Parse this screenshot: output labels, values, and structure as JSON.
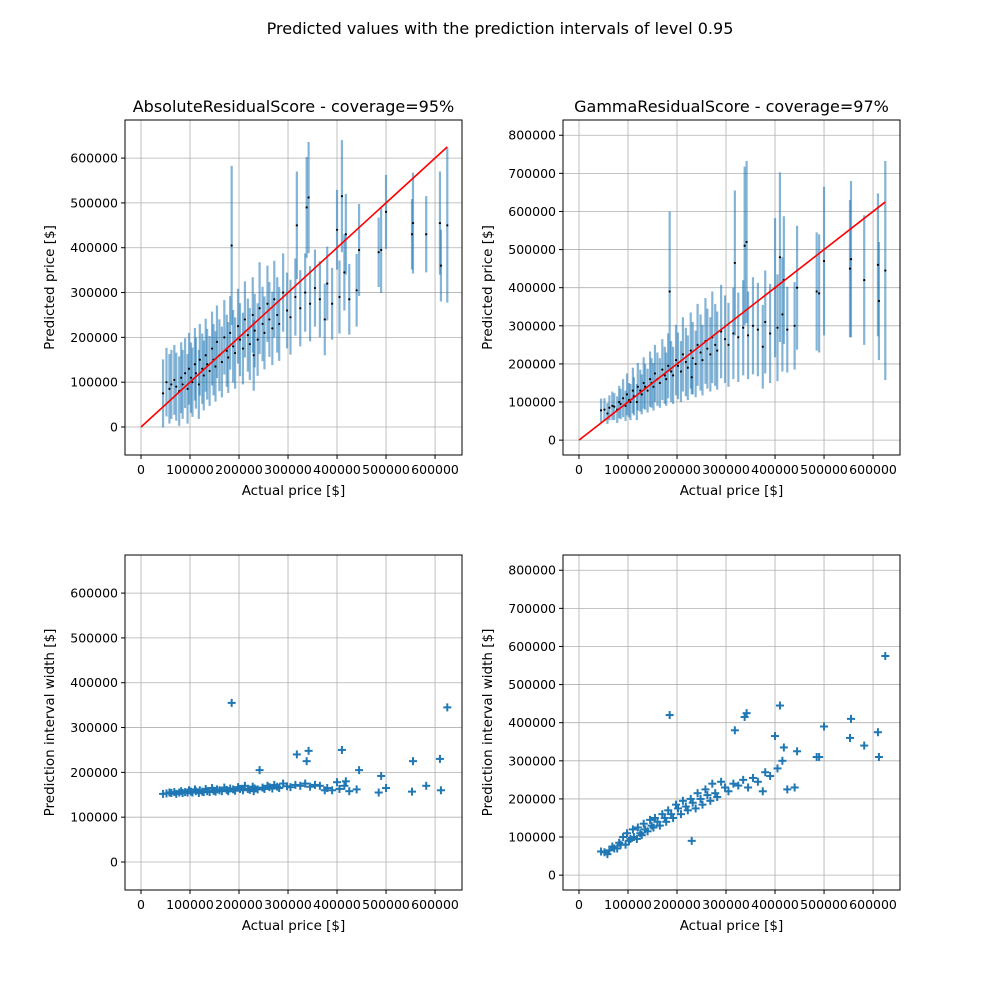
{
  "suptitle": "Predicted values with the prediction intervals of level 0.95",
  "colors": {
    "series": "#1f77b4",
    "identity_line": "#ff0000",
    "point": "#000000",
    "grid": "#b0b0b0"
  },
  "chart_data": [
    {
      "id": "abs_pred",
      "type": "errorbar",
      "title": "AbsoluteResidualScore - coverage=95%",
      "xlabel": "Actual price [$]",
      "ylabel": "Predicted price [$]",
      "method": "absolute",
      "xlim": [
        -32650,
        655000
      ],
      "ylim": [
        -62500,
        685000
      ],
      "xticks": [
        0,
        100000,
        200000,
        300000,
        400000,
        500000,
        600000
      ],
      "yticks": [
        0,
        100000,
        200000,
        300000,
        400000,
        500000,
        600000
      ],
      "grid": true,
      "identity_line": true
    },
    {
      "id": "gamma_pred",
      "type": "errorbar",
      "title": "GammaResidualScore - coverage=97%",
      "xlabel": "Actual price [$]",
      "ylabel": "Predicted price [$]",
      "method": "gamma",
      "xlim": [
        -32650,
        655000
      ],
      "ylim": [
        -39000,
        840000
      ],
      "xticks": [
        0,
        100000,
        200000,
        300000,
        400000,
        500000,
        600000
      ],
      "yticks": [
        0,
        100000,
        200000,
        300000,
        400000,
        500000,
        600000,
        700000,
        800000
      ],
      "grid": true,
      "identity_line": true
    },
    {
      "id": "abs_width",
      "type": "scatter",
      "marker": "+",
      "title": "",
      "xlabel": "Actual price [$]",
      "ylabel": "Prediction interval width [$]",
      "method": "absolute",
      "xlim": [
        -32650,
        655000
      ],
      "ylim": [
        -62500,
        685000
      ],
      "xticks": [
        0,
        100000,
        200000,
        300000,
        400000,
        500000,
        600000
      ],
      "yticks": [
        0,
        100000,
        200000,
        300000,
        400000,
        500000,
        600000
      ],
      "grid": true
    },
    {
      "id": "gamma_width",
      "type": "scatter",
      "marker": "+",
      "title": "",
      "xlabel": "Actual price [$]",
      "ylabel": "Prediction interval width [$]",
      "method": "gamma",
      "xlim": [
        -32650,
        655000
      ],
      "ylim": [
        -39000,
        840000
      ],
      "xticks": [
        0,
        100000,
        200000,
        300000,
        400000,
        500000,
        600000
      ],
      "yticks": [
        0,
        100000,
        200000,
        300000,
        400000,
        500000,
        600000,
        700000,
        800000
      ],
      "grid": true
    }
  ],
  "points_columns": [
    "actual",
    "absolute_pred",
    "absolute_width",
    "gamma_pred",
    "gamma_width"
  ],
  "points": [
    [
      45000,
      75000,
      152000,
      78000,
      62000
    ],
    [
      52000,
      100000,
      153000,
      80000,
      60000
    ],
    [
      58000,
      85000,
      155000,
      70000,
      55000
    ],
    [
      62000,
      95000,
      154000,
      85000,
      65000
    ],
    [
      68000,
      105000,
      156000,
      90000,
      75000
    ],
    [
      72000,
      90000,
      152000,
      88000,
      70000
    ],
    [
      78000,
      80000,
      155000,
      80000,
      70000
    ],
    [
      82000,
      110000,
      158000,
      100000,
      85000
    ],
    [
      85000,
      95000,
      154000,
      95000,
      80000
    ],
    [
      90000,
      120000,
      156000,
      110000,
      100000
    ],
    [
      95000,
      85000,
      155000,
      90000,
      80000
    ],
    [
      98000,
      130000,
      160000,
      120000,
      110000
    ],
    [
      102000,
      110000,
      157000,
      105000,
      90000
    ],
    [
      105000,
      100000,
      155000,
      100000,
      95000
    ],
    [
      110000,
      140000,
      162000,
      130000,
      120000
    ],
    [
      112000,
      120000,
      158000,
      115000,
      100000
    ],
    [
      118000,
      95000,
      154000,
      100000,
      95000
    ],
    [
      120000,
      150000,
      160000,
      140000,
      125000
    ],
    [
      125000,
      130000,
      157000,
      130000,
      110000
    ],
    [
      128000,
      115000,
      156000,
      120000,
      105000
    ],
    [
      132000,
      160000,
      163000,
      150000,
      135000
    ],
    [
      135000,
      140000,
      158000,
      140000,
      120000
    ],
    [
      140000,
      125000,
      156000,
      130000,
      115000
    ],
    [
      145000,
      175000,
      165000,
      160000,
      145000
    ],
    [
      148000,
      150000,
      159000,
      150000,
      130000
    ],
    [
      152000,
      135000,
      157000,
      140000,
      125000
    ],
    [
      155000,
      190000,
      162000,
      175000,
      150000
    ],
    [
      160000,
      160000,
      160000,
      160000,
      140000
    ],
    [
      165000,
      145000,
      158000,
      150000,
      130000
    ],
    [
      170000,
      200000,
      166000,
      185000,
      160000
    ],
    [
      175000,
      170000,
      161000,
      170000,
      150000
    ],
    [
      178000,
      155000,
      158000,
      160000,
      140000
    ],
    [
      182000,
      210000,
      164000,
      195000,
      170000
    ],
    [
      188000,
      180000,
      162000,
      180000,
      160000
    ],
    [
      192000,
      165000,
      159000,
      170000,
      150000
    ],
    [
      198000,
      225000,
      167000,
      210000,
      185000
    ],
    [
      202000,
      195000,
      163000,
      195000,
      175000
    ],
    [
      208000,
      175000,
      160000,
      180000,
      160000
    ],
    [
      212000,
      240000,
      170000,
      225000,
      195000
    ],
    [
      218000,
      205000,
      163000,
      205000,
      180000
    ],
    [
      222000,
      185000,
      161000,
      190000,
      170000
    ],
    [
      228000,
      250000,
      168000,
      235000,
      200000
    ],
    [
      230000,
      160000,
      158000,
      165000,
      90000
    ],
    [
      232000,
      215000,
      164000,
      215000,
      190000
    ],
    [
      238000,
      195000,
      162000,
      200000,
      175000
    ],
    [
      242000,
      265000,
      205000,
      250000,
      215000
    ],
    [
      248000,
      230000,
      166000,
      230000,
      200000
    ],
    [
      252000,
      210000,
      163000,
      210000,
      185000
    ],
    [
      258000,
      275000,
      170000,
      260000,
      225000
    ],
    [
      262000,
      240000,
      167000,
      240000,
      210000
    ],
    [
      268000,
      220000,
      164000,
      225000,
      195000
    ],
    [
      272000,
      285000,
      172000,
      270000,
      240000
    ],
    [
      278000,
      250000,
      168000,
      250000,
      215000
    ],
    [
      282000,
      230000,
      165000,
      235000,
      205000
    ],
    [
      290000,
      300000,
      175000,
      285000,
      245000
    ],
    [
      298000,
      260000,
      169000,
      265000,
      230000
    ],
    [
      305000,
      245000,
      167000,
      250000,
      220000
    ],
    [
      315000,
      290000,
      172000,
      280000,
      240000
    ],
    [
      325000,
      265000,
      170000,
      270000,
      235000
    ],
    [
      335000,
      300000,
      175000,
      295000,
      250000
    ],
    [
      345000,
      275000,
      168000,
      275000,
      230000
    ],
    [
      355000,
      310000,
      172000,
      300000,
      255000
    ],
    [
      365000,
      285000,
      170000,
      290000,
      245000
    ],
    [
      375000,
      240000,
      160000,
      245000,
      220000
    ],
    [
      380000,
      320000,
      165000,
      310000,
      270000
    ],
    [
      390000,
      275000,
      160000,
      280000,
      260000
    ],
    [
      405000,
      290000,
      163000,
      295000,
      280000
    ],
    [
      415000,
      345000,
      170000,
      330000,
      300000
    ],
    [
      425000,
      285000,
      158000,
      290000,
      225000
    ],
    [
      440000,
      305000,
      162000,
      300000,
      230000
    ],
    [
      185000,
      405000,
      355000,
      390000,
      420000
    ],
    [
      318000,
      450000,
      240000,
      465000,
      380000
    ],
    [
      338000,
      490000,
      225000,
      510000,
      415000
    ],
    [
      342000,
      512000,
      248000,
      520000,
      425000
    ],
    [
      410000,
      515000,
      250000,
      480000,
      445000
    ],
    [
      400000,
      440000,
      178000,
      400000,
      365000
    ],
    [
      418000,
      430000,
      180000,
      420000,
      335000
    ],
    [
      445000,
      395000,
      205000,
      400000,
      325000
    ],
    [
      485000,
      390000,
      155000,
      390000,
      310000
    ],
    [
      490000,
      395000,
      192000,
      385000,
      310000
    ],
    [
      500000,
      480000,
      165000,
      470000,
      390000
    ],
    [
      553000,
      430000,
      157000,
      450000,
      360000
    ],
    [
      555000,
      455000,
      225000,
      475000,
      410000
    ],
    [
      582000,
      430000,
      170000,
      420000,
      340000
    ],
    [
      610000,
      455000,
      230000,
      460000,
      375000
    ],
    [
      612000,
      360000,
      160000,
      365000,
      310000
    ],
    [
      625000,
      450000,
      345000,
      445000,
      575000
    ]
  ]
}
